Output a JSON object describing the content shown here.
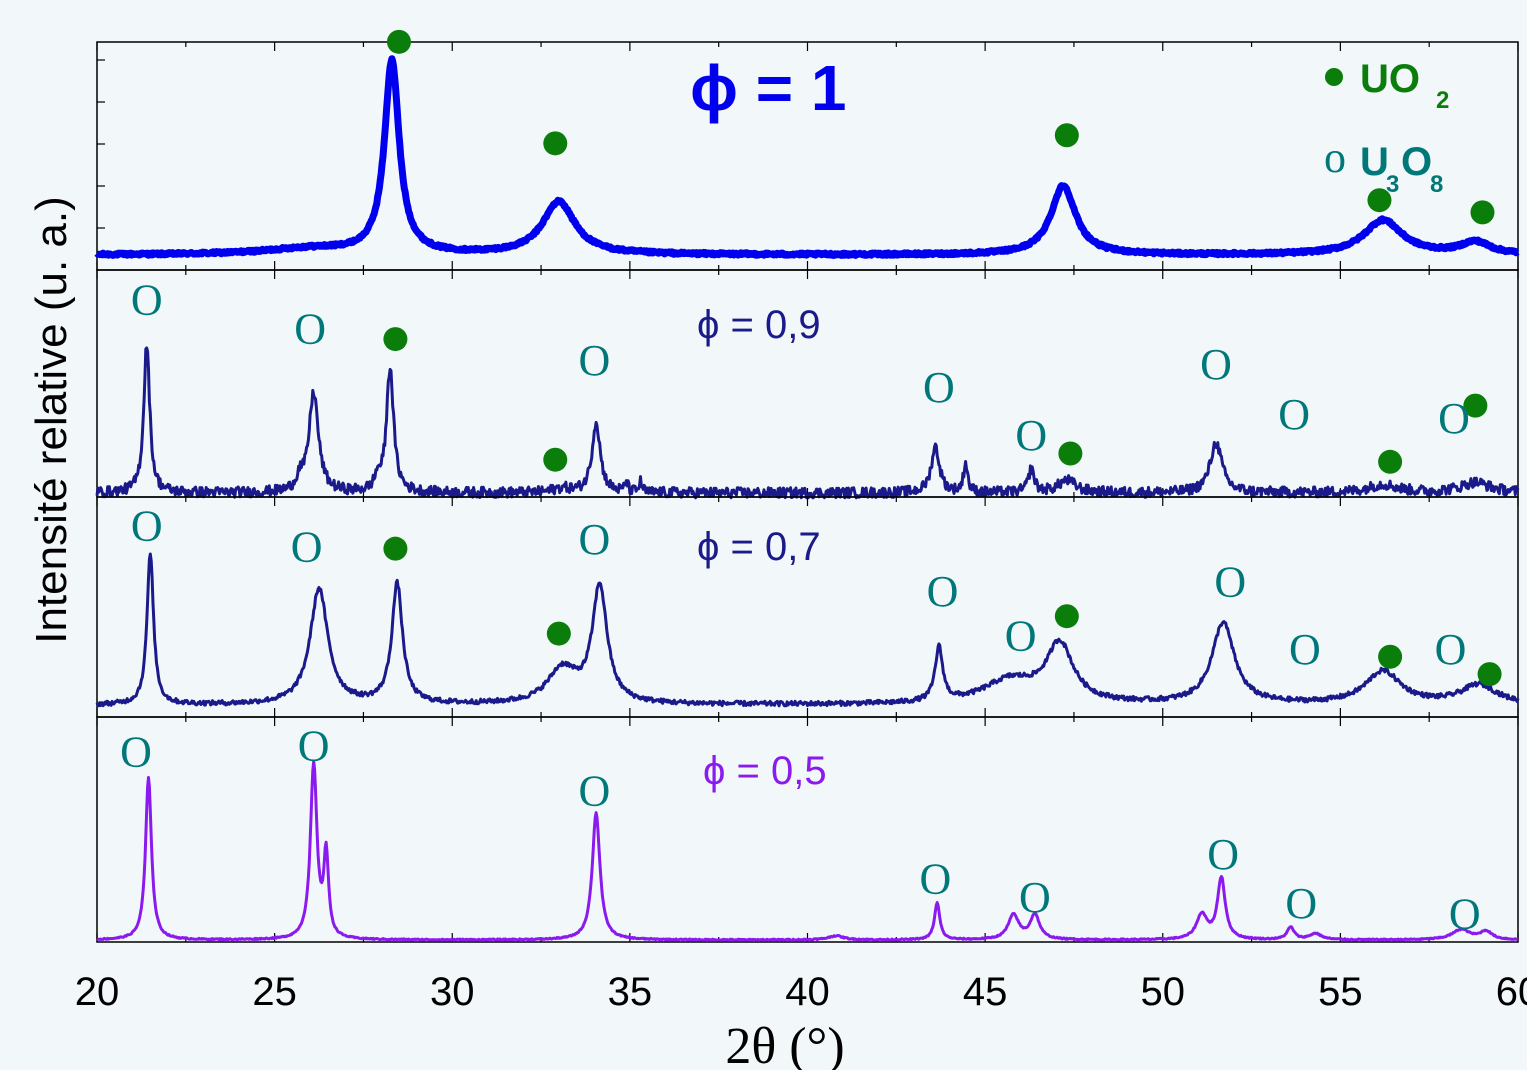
{
  "chart_data": {
    "type": "line",
    "xlabel": "2θ (°)",
    "ylabel": "Intensité relative (u. a.)",
    "xlim": [
      20,
      60
    ],
    "xticks": [
      "20",
      "25",
      "30",
      "35",
      "40",
      "45",
      "50",
      "55",
      "60"
    ],
    "grid": false,
    "colors": {
      "uo2": "#0b7d0b",
      "u3o8": "#00787a"
    },
    "legend": {
      "position": "top-right",
      "items": [
        {
          "symbol": "●",
          "main": "UO",
          "sub1": "2",
          "rest": "",
          "color": "#0b7d0b"
        },
        {
          "symbol": "o",
          "main": "U",
          "sub1": "3",
          "rest": "O",
          "sub2": "8",
          "color": "#00787a"
        }
      ]
    },
    "panels": [
      {
        "name": "ϕ = 1",
        "color": "#0000ee",
        "stroke": 7,
        "big": true,
        "noise": 0.006,
        "peaks": [
          [
            28.3,
            0.95,
            0.25
          ],
          [
            33.0,
            0.26,
            0.55
          ],
          [
            47.2,
            0.34,
            0.42
          ],
          [
            56.2,
            0.17,
            0.65
          ],
          [
            58.8,
            0.06,
            0.5
          ],
          [
            26,
            0.03,
            1.5
          ]
        ],
        "uo2": [
          [
            28.5,
            1.05
          ],
          [
            32.9,
            0.55
          ],
          [
            47.3,
            0.59
          ],
          [
            56.1,
            0.27
          ],
          [
            59.0,
            0.21
          ]
        ],
        "u3o8": []
      },
      {
        "name": "ϕ = 0,9",
        "color": "#1a1a8a",
        "stroke": 3,
        "big": false,
        "noise": 0.025,
        "peaks": [
          [
            21.4,
            0.72,
            0.1
          ],
          [
            26.1,
            0.48,
            0.16
          ],
          [
            28.25,
            0.6,
            0.12
          ],
          [
            33.1,
            0.02,
            0.3
          ],
          [
            34.05,
            0.34,
            0.14
          ],
          [
            43.6,
            0.22,
            0.14
          ],
          [
            44.45,
            0.14,
            0.07
          ],
          [
            46.3,
            0.11,
            0.1
          ],
          [
            47.3,
            0.06,
            0.3
          ],
          [
            51.5,
            0.24,
            0.2
          ],
          [
            56.2,
            0.04,
            0.5
          ],
          [
            58.8,
            0.05,
            0.5
          ],
          [
            34.9,
            0.05,
            0.05
          ],
          [
            35.3,
            0.05,
            0.05
          ],
          [
            25.7,
            0.06,
            0.1
          ],
          [
            27.9,
            0.06,
            0.1
          ]
        ],
        "uo2": [
          [
            28.4,
            0.74
          ],
          [
            32.9,
            0.16
          ],
          [
            47.4,
            0.19
          ],
          [
            56.4,
            0.15
          ],
          [
            58.8,
            0.42
          ]
        ],
        "u3o8": [
          [
            21.4,
            0.93
          ],
          [
            26.0,
            0.79
          ],
          [
            34.0,
            0.64
          ],
          [
            43.7,
            0.51
          ],
          [
            46.3,
            0.28
          ],
          [
            51.5,
            0.62
          ],
          [
            53.7,
            0.38
          ],
          [
            58.2,
            0.36
          ]
        ]
      },
      {
        "name": "ϕ = 0,7",
        "color": "#1a1a8a",
        "stroke": 3,
        "big": false,
        "noise": 0.012,
        "peaks": [
          [
            21.5,
            0.78,
            0.11
          ],
          [
            26.25,
            0.6,
            0.3
          ],
          [
            28.45,
            0.62,
            0.18
          ],
          [
            33.1,
            0.18,
            0.5
          ],
          [
            34.15,
            0.6,
            0.25
          ],
          [
            43.7,
            0.28,
            0.13
          ],
          [
            45.7,
            0.12,
            0.9
          ],
          [
            47.1,
            0.3,
            0.45
          ],
          [
            51.7,
            0.42,
            0.38
          ],
          [
            56.2,
            0.17,
            0.6
          ],
          [
            58.9,
            0.1,
            0.6
          ]
        ],
        "uo2": [
          [
            28.4,
            0.81
          ],
          [
            33.0,
            0.37
          ],
          [
            47.3,
            0.46
          ],
          [
            56.4,
            0.25
          ],
          [
            59.2,
            0.16
          ]
        ],
        "u3o8": [
          [
            21.4,
            0.93
          ],
          [
            25.9,
            0.82
          ],
          [
            34.0,
            0.86
          ],
          [
            43.8,
            0.59
          ],
          [
            46.0,
            0.36
          ],
          [
            51.9,
            0.64
          ],
          [
            54.0,
            0.29
          ],
          [
            58.1,
            0.29
          ]
        ]
      },
      {
        "name": "ϕ = 0,5",
        "color": "#8a1aee",
        "stroke": 3,
        "big": false,
        "noise": 0.003,
        "peaks": [
          [
            21.45,
            0.79,
            0.1
          ],
          [
            26.1,
            0.85,
            0.11
          ],
          [
            26.45,
            0.4,
            0.08
          ],
          [
            34.05,
            0.62,
            0.13
          ],
          [
            40.8,
            0.02,
            0.25
          ],
          [
            43.65,
            0.18,
            0.09
          ],
          [
            45.8,
            0.12,
            0.18
          ],
          [
            46.4,
            0.12,
            0.16
          ],
          [
            51.1,
            0.12,
            0.18
          ],
          [
            51.65,
            0.3,
            0.13
          ],
          [
            53.6,
            0.06,
            0.12
          ],
          [
            54.3,
            0.03,
            0.2
          ],
          [
            58.4,
            0.05,
            0.3
          ],
          [
            59.1,
            0.04,
            0.2
          ]
        ],
        "uo2": [],
        "u3o8": [
          [
            21.1,
            0.92
          ],
          [
            26.1,
            0.95
          ],
          [
            34.0,
            0.73
          ],
          [
            43.6,
            0.3
          ],
          [
            46.4,
            0.21
          ],
          [
            51.7,
            0.42
          ],
          [
            53.9,
            0.18
          ],
          [
            58.5,
            0.13
          ]
        ]
      }
    ]
  }
}
